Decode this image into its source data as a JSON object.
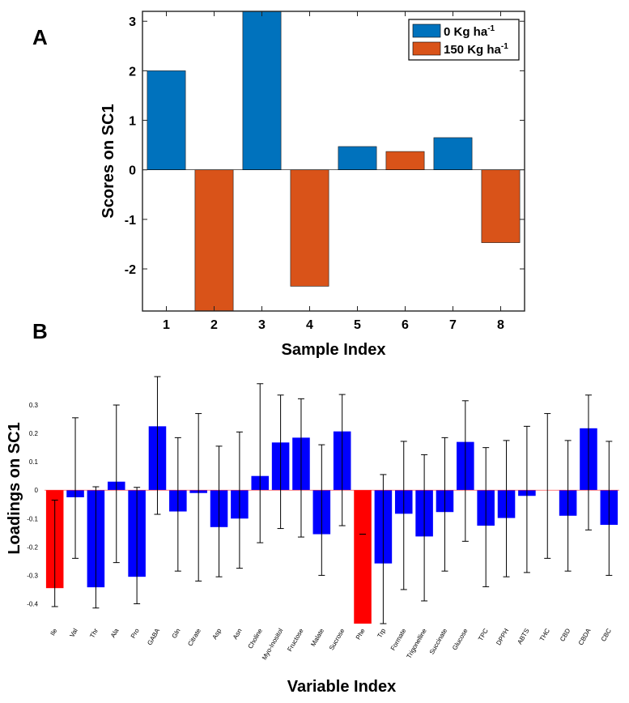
{
  "panels": {
    "a_label": "A",
    "b_label": "B"
  },
  "chart_data": [
    {
      "type": "bar",
      "panel": "A",
      "title": "",
      "xlabel": "Sample Index",
      "ylabel": "Scores on SC1",
      "categories": [
        "1",
        "2",
        "3",
        "4",
        "5",
        "6",
        "7",
        "8"
      ],
      "values": [
        2.0,
        -2.85,
        3.2,
        -2.35,
        0.47,
        0.37,
        0.65,
        -1.47
      ],
      "colors_by_group": [
        "#0072BD",
        "#D95319",
        "#0072BD",
        "#D95319",
        "#0072BD",
        "#D95319",
        "#0072BD",
        "#D95319"
      ],
      "ylim": [
        -2.85,
        3.2
      ],
      "yticks": [
        -2,
        -1,
        0,
        1,
        2,
        3
      ],
      "legend": {
        "placement": "top-right",
        "entries": [
          {
            "label": "0 Kg ha",
            "sup": "-1",
            "color": "#0072BD"
          },
          {
            "label": "150 Kg ha",
            "sup": "-1",
            "color": "#D95319"
          }
        ]
      }
    },
    {
      "type": "bar",
      "panel": "B",
      "title": "",
      "xlabel": "Variable Index",
      "ylabel": "Loadings on SC1",
      "categories": [
        "Ile",
        "Val",
        "Thr",
        "Ala",
        "Pro",
        "GABA",
        "Gln",
        "Citrate",
        "Asp",
        "Asn",
        "Choline",
        "Myo-Inositol",
        "Fructose",
        "Malate",
        "Sucrose",
        "Phe",
        "Trp",
        "Formate",
        "Trigonelline",
        "Succinate",
        "Glucose",
        "TPC",
        "DPPH",
        "ABTS",
        "THC",
        "CBD",
        "CBDA",
        "CBC"
      ],
      "values": [
        -0.345,
        -0.025,
        -0.342,
        0.03,
        -0.305,
        0.225,
        -0.075,
        -0.01,
        -0.13,
        -0.1,
        0.05,
        0.168,
        0.185,
        -0.155,
        0.207,
        -0.47,
        -0.258,
        -0.083,
        -0.163,
        -0.077,
        0.17,
        -0.125,
        -0.098,
        -0.02,
        0.0,
        -0.09,
        0.218,
        -0.122
      ],
      "error_low": [
        -0.41,
        -0.24,
        -0.415,
        -0.255,
        -0.4,
        -0.085,
        -0.285,
        -0.32,
        -0.305,
        -0.275,
        -0.185,
        -0.135,
        -0.165,
        -0.3,
        -0.125,
        -0.155,
        -0.47,
        -0.35,
        -0.39,
        -0.285,
        -0.18,
        -0.34,
        -0.305,
        -0.29,
        -0.24,
        -0.285,
        -0.14,
        -0.3
      ],
      "error_high": [
        -0.035,
        0.255,
        0.012,
        0.3,
        0.01,
        0.4,
        0.185,
        0.27,
        0.155,
        0.205,
        0.375,
        0.335,
        0.322,
        0.16,
        0.337,
        -0.155,
        0.055,
        0.172,
        0.125,
        0.185,
        0.315,
        0.15,
        0.175,
        0.225,
        0.27,
        0.175,
        0.335,
        0.172
      ],
      "highlight": [
        "Ile",
        "Phe"
      ],
      "bar_color": "#0000FF",
      "highlight_color": "#FF0000",
      "ylim": [
        -0.47,
        0.4
      ],
      "yticks": [
        -0.4,
        -0.3,
        -0.2,
        -0.1,
        0,
        0.1,
        0.2,
        0.3
      ],
      "ytick_labels": [
        "-0.4",
        "-0.3",
        "-0.2",
        "-0.1",
        "0",
        "0.1",
        "0.2",
        "0.3"
      ]
    }
  ]
}
